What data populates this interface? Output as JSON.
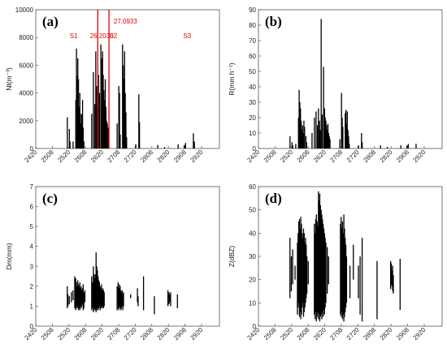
{
  "colors": {
    "bar": "#000000",
    "axis": "#555555",
    "annotation": "#e00000",
    "panel_bg": "#ffffff"
  },
  "chart_data": [
    {
      "type": "bar",
      "panel": "(a)",
      "ylabel": "Nt(m⁻³)",
      "ylim": [
        0,
        10000
      ],
      "yticks": [
        0,
        2000,
        4000,
        6000,
        8000,
        10000
      ],
      "xlim": [
        2420,
        2962
      ],
      "xticks": [
        "2420",
        "2508",
        "2520",
        "2608",
        "2620",
        "2708",
        "2720",
        "2808",
        "2820",
        "2908",
        "2920"
      ],
      "grid": false,
      "annotations": [
        {
          "text": "S1",
          "x": 2520,
          "y": 8000
        },
        {
          "text": "26.2030",
          "x": 2580,
          "y": 8000
        },
        {
          "text": "S2",
          "x": 2637,
          "y": 8000
        },
        {
          "text": "27.0933",
          "x": 2650,
          "y": 9000
        },
        {
          "text": "S3",
          "x": 2855,
          "y": 8000
        }
      ],
      "vlines": [
        2603,
        2636
      ],
      "data": [
        [
          2513,
          2250
        ],
        [
          2519,
          1400
        ],
        [
          2521,
          500
        ],
        [
          2530,
          500
        ],
        [
          2538,
          3500
        ],
        [
          2540,
          7200
        ],
        [
          2542,
          5200
        ],
        [
          2544,
          6500
        ],
        [
          2546,
          5000
        ],
        [
          2548,
          3000
        ],
        [
          2550,
          4000
        ],
        [
          2552,
          1800
        ],
        [
          2554,
          2500
        ],
        [
          2556,
          2400
        ],
        [
          2558,
          3500
        ],
        [
          2560,
          1500
        ],
        [
          2562,
          500
        ],
        [
          2585,
          2500
        ],
        [
          2590,
          5500
        ],
        [
          2594,
          3200
        ],
        [
          2597,
          7000
        ],
        [
          2600,
          4500
        ],
        [
          2602,
          3000
        ],
        [
          2605,
          5300
        ],
        [
          2608,
          4000
        ],
        [
          2612,
          7500
        ],
        [
          2615,
          6500
        ],
        [
          2617,
          7000
        ],
        [
          2619,
          5300
        ],
        [
          2621,
          4200
        ],
        [
          2623,
          3500
        ],
        [
          2625,
          5000
        ],
        [
          2627,
          3000
        ],
        [
          2629,
          2000
        ],
        [
          2631,
          1800
        ],
        [
          2634,
          1500
        ],
        [
          2660,
          1800
        ],
        [
          2665,
          4500
        ],
        [
          2667,
          4000
        ],
        [
          2669,
          1000
        ],
        [
          2676,
          7500
        ],
        [
          2678,
          6000
        ],
        [
          2680,
          5000
        ],
        [
          2682,
          7000
        ],
        [
          2684,
          4000
        ],
        [
          2686,
          2600
        ],
        [
          2688,
          800
        ],
        [
          2715,
          300
        ],
        [
          2724,
          3900
        ],
        [
          2726,
          1900
        ],
        [
          2780,
          250
        ],
        [
          2800,
          100
        ],
        [
          2840,
          300
        ],
        [
          2858,
          250
        ],
        [
          2862,
          400
        ],
        [
          2885,
          1100
        ],
        [
          2888,
          500
        ]
      ]
    },
    {
      "type": "bar",
      "panel": "(b)",
      "ylabel": "R(mm h⁻¹)",
      "ylim": [
        0,
        90
      ],
      "yticks": [
        0,
        10,
        20,
        30,
        40,
        50,
        60,
        70,
        80,
        90
      ],
      "xlim": [
        2420,
        2962
      ],
      "xticks": [
        "2420",
        "2508",
        "2520",
        "2608",
        "2620",
        "2708",
        "2720",
        "2808",
        "2820",
        "2908",
        "2920"
      ],
      "grid": false,
      "data": [
        [
          2513,
          8
        ],
        [
          2519,
          4
        ],
        [
          2521,
          2
        ],
        [
          2530,
          3
        ],
        [
          2538,
          20
        ],
        [
          2540,
          38
        ],
        [
          2542,
          30
        ],
        [
          2544,
          26
        ],
        [
          2546,
          18
        ],
        [
          2548,
          12
        ],
        [
          2550,
          15
        ],
        [
          2552,
          10
        ],
        [
          2554,
          18
        ],
        [
          2556,
          14
        ],
        [
          2560,
          8
        ],
        [
          2562,
          4
        ],
        [
          2578,
          10
        ],
        [
          2585,
          20
        ],
        [
          2590,
          24
        ],
        [
          2594,
          15
        ],
        [
          2597,
          26
        ],
        [
          2600,
          18
        ],
        [
          2602,
          12
        ],
        [
          2605,
          84
        ],
        [
          2608,
          22
        ],
        [
          2612,
          53
        ],
        [
          2615,
          26
        ],
        [
          2617,
          20
        ],
        [
          2619,
          18
        ],
        [
          2621,
          15
        ],
        [
          2623,
          12
        ],
        [
          2625,
          16
        ],
        [
          2627,
          10
        ],
        [
          2629,
          8
        ],
        [
          2631,
          6
        ],
        [
          2660,
          6
        ],
        [
          2665,
          36
        ],
        [
          2667,
          20
        ],
        [
          2669,
          14
        ],
        [
          2676,
          23
        ],
        [
          2678,
          25
        ],
        [
          2680,
          16
        ],
        [
          2682,
          24
        ],
        [
          2684,
          12
        ],
        [
          2686,
          8
        ],
        [
          2688,
          3
        ],
        [
          2715,
          2
        ],
        [
          2724,
          10
        ],
        [
          2726,
          4
        ],
        [
          2780,
          2
        ],
        [
          2800,
          1
        ],
        [
          2840,
          2
        ],
        [
          2858,
          2
        ],
        [
          2862,
          3
        ],
        [
          2885,
          3
        ]
      ]
    },
    {
      "type": "range",
      "panel": "(c)",
      "ylabel": "Dm(mm)",
      "ylim": [
        0,
        7
      ],
      "yticks": [
        0,
        1,
        2,
        3,
        4,
        5,
        6,
        7
      ],
      "xlim": [
        2420,
        2962
      ],
      "xticks": [
        "2420",
        "2508",
        "2520",
        "2608",
        "2620",
        "2708",
        "2720",
        "2808",
        "2820",
        "2908",
        "2920"
      ],
      "grid": false,
      "data": [
        [
          2513,
          0.9,
          2.0
        ],
        [
          2515,
          1.0,
          1.6
        ],
        [
          2519,
          1.1,
          1.5
        ],
        [
          2525,
          1.2,
          1.7
        ],
        [
          2530,
          1.3,
          1.8
        ],
        [
          2535,
          0.9,
          2.5
        ],
        [
          2538,
          0.8,
          2.4
        ],
        [
          2540,
          0.9,
          2.2
        ],
        [
          2542,
          1.0,
          2.0
        ],
        [
          2544,
          0.9,
          2.3
        ],
        [
          2546,
          0.8,
          2.1
        ],
        [
          2548,
          0.9,
          2.0
        ],
        [
          2550,
          0.8,
          2.2
        ],
        [
          2552,
          1.0,
          1.9
        ],
        [
          2554,
          0.9,
          2.0
        ],
        [
          2556,
          1.0,
          1.8
        ],
        [
          2558,
          1.1,
          1.9
        ],
        [
          2560,
          0.8,
          2.1
        ],
        [
          2562,
          0.9,
          1.7
        ],
        [
          2565,
          1.2,
          1.8
        ],
        [
          2585,
          0.8,
          2.5
        ],
        [
          2588,
          0.9,
          2.2
        ],
        [
          2590,
          0.7,
          3.0
        ],
        [
          2592,
          0.8,
          2.6
        ],
        [
          2594,
          0.9,
          2.4
        ],
        [
          2596,
          0.8,
          2.6
        ],
        [
          2598,
          0.7,
          3.7
        ],
        [
          2600,
          0.8,
          3.0
        ],
        [
          2602,
          0.9,
          2.8
        ],
        [
          2604,
          0.8,
          2.5
        ],
        [
          2606,
          0.9,
          2.3
        ],
        [
          2608,
          1.0,
          2.2
        ],
        [
          2610,
          0.8,
          2.0
        ],
        [
          2612,
          0.9,
          1.9
        ],
        [
          2614,
          1.0,
          2.1
        ],
        [
          2616,
          0.9,
          1.8
        ],
        [
          2618,
          1.0,
          1.9
        ],
        [
          2620,
          0.9,
          1.8
        ],
        [
          2622,
          1.0,
          1.7
        ],
        [
          2660,
          0.8,
          2.0
        ],
        [
          2663,
          0.9,
          2.2
        ],
        [
          2665,
          0.8,
          1.9
        ],
        [
          2667,
          1.0,
          2.1
        ],
        [
          2669,
          0.9,
          2.0
        ],
        [
          2671,
          0.8,
          1.8
        ],
        [
          2673,
          0.9,
          1.7
        ],
        [
          2675,
          1.0,
          1.8
        ],
        [
          2677,
          0.8,
          1.6
        ],
        [
          2679,
          1.0,
          1.7
        ],
        [
          2700,
          1.4,
          1.6
        ],
        [
          2720,
          1.2,
          1.9
        ],
        [
          2722,
          1.0,
          1.5
        ],
        [
          2738,
          0.8,
          2.5
        ],
        [
          2770,
          0.6,
          1.5
        ],
        [
          2810,
          1.0,
          1.8
        ],
        [
          2813,
          1.1,
          1.7
        ],
        [
          2815,
          1.2,
          1.6
        ],
        [
          2818,
          1.0,
          1.7
        ],
        [
          2838,
          0.9,
          1.6
        ]
      ]
    },
    {
      "type": "range",
      "panel": "(d)",
      "ylabel": "Z(dBZ)",
      "ylim": [
        0,
        60
      ],
      "yticks": [
        0,
        10,
        20,
        30,
        40,
        50,
        60
      ],
      "xlim": [
        2420,
        2962
      ],
      "xticks": [
        "2420",
        "2508",
        "2520",
        "2608",
        "2620",
        "2708",
        "2720",
        "2808",
        "2820",
        "2908",
        "2920"
      ],
      "grid": false,
      "data": [
        [
          2513,
          12,
          38
        ],
        [
          2517,
          15,
          30
        ],
        [
          2521,
          18,
          33
        ],
        [
          2528,
          20,
          26
        ],
        [
          2535,
          5,
          36
        ],
        [
          2537,
          8,
          40
        ],
        [
          2539,
          10,
          45
        ],
        [
          2541,
          4,
          46
        ],
        [
          2543,
          6,
          42
        ],
        [
          2545,
          3,
          47
        ],
        [
          2547,
          5,
          44
        ],
        [
          2549,
          8,
          40
        ],
        [
          2551,
          10,
          38
        ],
        [
          2553,
          4,
          42
        ],
        [
          2555,
          6,
          40
        ],
        [
          2557,
          8,
          36
        ],
        [
          2559,
          10,
          38
        ],
        [
          2561,
          12,
          35
        ],
        [
          2563,
          14,
          30
        ],
        [
          2567,
          18,
          28
        ],
        [
          2585,
          5,
          44
        ],
        [
          2587,
          3,
          40
        ],
        [
          2589,
          6,
          46
        ],
        [
          2591,
          2,
          48
        ],
        [
          2593,
          4,
          45
        ],
        [
          2595,
          6,
          43
        ],
        [
          2597,
          3,
          58
        ],
        [
          2599,
          5,
          54
        ],
        [
          2601,
          2,
          57
        ],
        [
          2603,
          4,
          52
        ],
        [
          2605,
          5,
          50
        ],
        [
          2607,
          3,
          48
        ],
        [
          2609,
          6,
          46
        ],
        [
          2611,
          4,
          44
        ],
        [
          2613,
          7,
          42
        ],
        [
          2615,
          5,
          40
        ],
        [
          2617,
          8,
          38
        ],
        [
          2619,
          10,
          36
        ],
        [
          2623,
          14,
          34
        ],
        [
          2627,
          18,
          30
        ],
        [
          2662,
          5,
          44
        ],
        [
          2664,
          4,
          47
        ],
        [
          2666,
          6,
          42
        ],
        [
          2668,
          3,
          45
        ],
        [
          2670,
          5,
          40
        ],
        [
          2672,
          2,
          48
        ],
        [
          2674,
          4,
          42
        ],
        [
          2676,
          6,
          38
        ],
        [
          2678,
          8,
          35
        ],
        [
          2680,
          10,
          30
        ],
        [
          2690,
          12,
          26
        ],
        [
          2700,
          20,
          35
        ],
        [
          2715,
          12,
          26
        ],
        [
          2720,
          5,
          30
        ],
        [
          2726,
          2,
          38
        ],
        [
          2770,
          3,
          28
        ],
        [
          2810,
          16,
          28
        ],
        [
          2812,
          18,
          27
        ],
        [
          2814,
          17,
          24
        ],
        [
          2816,
          15,
          26
        ],
        [
          2818,
          14,
          22
        ],
        [
          2838,
          7,
          29
        ]
      ]
    }
  ]
}
